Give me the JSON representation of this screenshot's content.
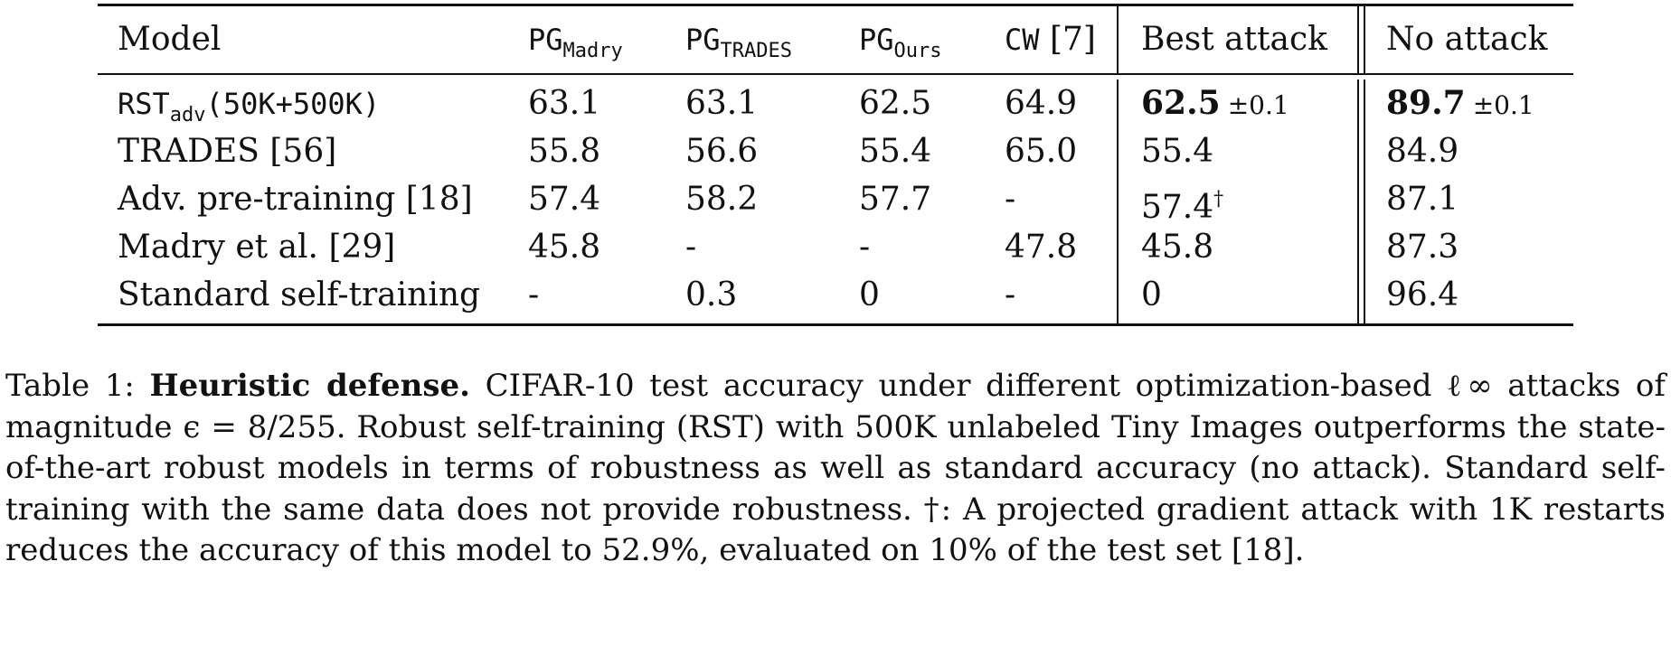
{
  "table": {
    "header": {
      "model": "Model",
      "pg_madry_main": "PG",
      "pg_madry_sub": "Madry",
      "pg_trades_main": "PG",
      "pg_trades_sub": "TRADES",
      "pg_ours_main": "PG",
      "pg_ours_sub": "Ours",
      "cw_main": "CW",
      "cw_ref": " [7]",
      "best_attack": "Best attack",
      "no_attack": "No attack"
    },
    "rows": [
      {
        "model_main": "RST",
        "model_sub": "adv",
        "model_suffix": "(50K+500K)",
        "pg_madry": "63.1",
        "pg_trades": "63.1",
        "pg_ours": "62.5",
        "cw": "64.9",
        "best_attack": "62.5",
        "best_attack_pm": "±0.1",
        "no_attack": "89.7",
        "no_attack_pm": "±0.1"
      },
      {
        "model": "TRADES [56]",
        "pg_madry": "55.8",
        "pg_trades": "56.6",
        "pg_ours": "55.4",
        "cw": "65.0",
        "best_attack": "55.4",
        "no_attack": "84.9"
      },
      {
        "model": "Adv. pre-training [18]",
        "pg_madry": "57.4",
        "pg_trades": "58.2",
        "pg_ours": "57.7",
        "cw": "-",
        "best_attack": "57.4",
        "best_attack_mark": "†",
        "no_attack": "87.1"
      },
      {
        "model": "Madry et al. [29]",
        "pg_madry": "45.8",
        "pg_trades": "-",
        "pg_ours": "-",
        "cw": "47.8",
        "best_attack": "45.8",
        "no_attack": "87.3"
      },
      {
        "model": "Standard self-training",
        "pg_madry": "-",
        "pg_trades": "0.3",
        "pg_ours": "0",
        "cw": "-",
        "best_attack": "0",
        "no_attack": "96.4"
      }
    ]
  },
  "caption": {
    "label": "Table 1: ",
    "title": "Heuristic defense.",
    "text": " CIFAR-10 test accuracy under different optimization-based ℓ∞ attacks of magnitude ϵ = 8/255. Robust self-training (RST) with 500K unlabeled Tiny Images outperforms the state-of-the-art robust models in terms of robustness as well as standard accuracy (no attack). Standard self-training with the same data does not provide robustness. †: A projected gradient attack with 1K restarts reduces the accuracy of this model to 52.9%, evaluated on 10% of the test set [18]."
  }
}
